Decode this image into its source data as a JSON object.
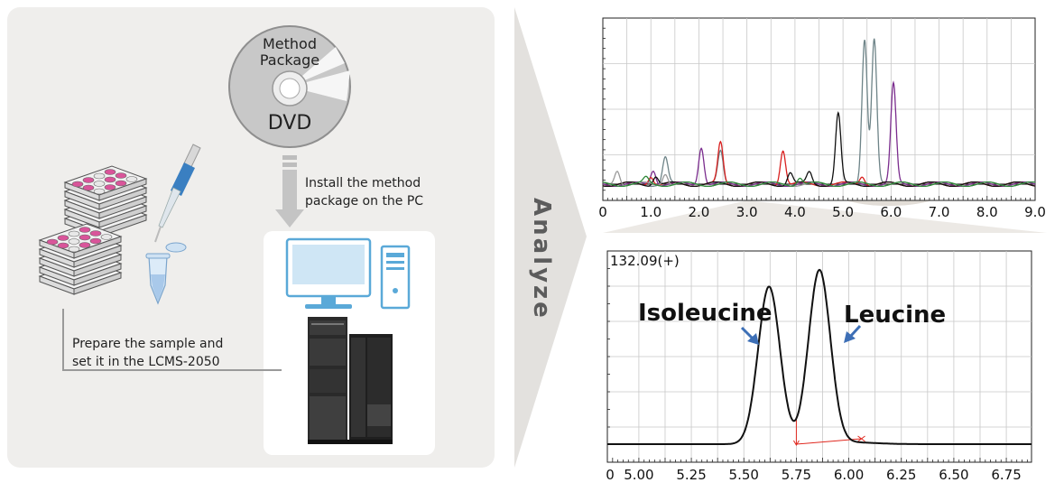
{
  "workflow": {
    "dvd_line1": "Method",
    "dvd_line2": "Package",
    "dvd_label": "DVD",
    "install_line1": "Install the method",
    "install_line2": "package on the PC",
    "prepare_line1": "Prepare the sample and",
    "prepare_line2": "set it in the LCMS-2050",
    "analyze_label": "Analyze"
  },
  "colors": {
    "panel": "#efeeec",
    "arrow": "#e3e1de",
    "pipette_blue": "#3a7fc1",
    "sample_pink": "#d9559a",
    "pc_blue": "#5aa9d8",
    "zoom_arrow": "#3d6fb6",
    "baseline_red": "#e0281f"
  },
  "chart_data": [
    {
      "type": "line",
      "x_ticks": [
        "0",
        "1.0",
        "2.0",
        "3.0",
        "4.0",
        "5.0",
        "6.0",
        "7.0",
        "8.0",
        "9.0"
      ],
      "xlim": [
        0,
        9.0
      ],
      "grid": true,
      "series": [
        {
          "color": "#6e8488",
          "peaks": [
            [
              1.3,
              0.18
            ],
            [
              2.45,
              0.22
            ],
            [
              5.45,
              1.0
            ],
            [
              5.65,
              1.0
            ]
          ]
        },
        {
          "color": "#7b2d8e",
          "peaks": [
            [
              1.05,
              0.1
            ],
            [
              2.05,
              0.26
            ],
            [
              6.05,
              0.68
            ]
          ]
        },
        {
          "color": "#d9201f",
          "peaks": [
            [
              1.0,
              0.06
            ],
            [
              2.45,
              0.28
            ],
            [
              3.75,
              0.24
            ],
            [
              5.4,
              0.06
            ]
          ]
        },
        {
          "color": "#111111",
          "peaks": [
            [
              1.1,
              0.06
            ],
            [
              3.9,
              0.08
            ],
            [
              4.3,
              0.08
            ],
            [
              4.9,
              0.48
            ]
          ]
        },
        {
          "color": "#9a9a9a",
          "peaks": [
            [
              0.3,
              0.1
            ],
            [
              1.3,
              0.08
            ]
          ]
        },
        {
          "color": "#2f8a3a",
          "peaks": [
            [
              0.9,
              0.04
            ],
            [
              4.1,
              0.05
            ]
          ]
        }
      ]
    },
    {
      "type": "line",
      "title": "132.09(+)",
      "x_ticks": [
        "0",
        "5.00",
        "5.25",
        "5.50",
        "5.75",
        "6.00",
        "6.25",
        "6.50",
        "6.75"
      ],
      "xlim": [
        4.85,
        6.87
      ],
      "grid": true,
      "annotations": [
        "Isoleucine",
        "Leucine"
      ],
      "series": [
        {
          "color": "#111111",
          "peaks": [
            [
              5.62,
              1.0
            ],
            [
              5.86,
              1.1
            ]
          ]
        }
      ],
      "integration_baseline": {
        "start": 5.75,
        "end": 6.06
      }
    }
  ]
}
